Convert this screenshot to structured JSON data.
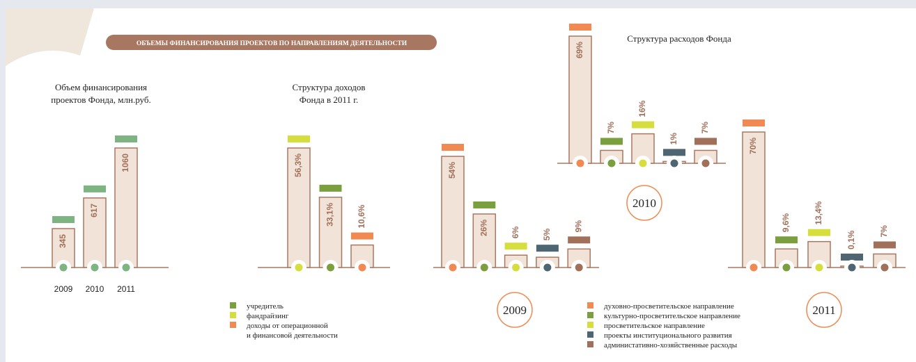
{
  "header": {
    "title": "ОБЪЕМЫ ФИНАНСИРОВАНИЯ ПРОЕКТОВ  ПО НАПРАВЛЕНИЯМ ДЕЯТЕЛЬНОСТИ"
  },
  "chart_data": [
    {
      "type": "bar",
      "title": [
        "Объем финансирования",
        "проектов Фонда, млн.руб."
      ],
      "categories": [
        "2009",
        "2010",
        "2011"
      ],
      "values": [
        345,
        617,
        1060
      ],
      "colors": [
        "#7db482",
        "#7db482",
        "#7db482"
      ]
    },
    {
      "type": "bar",
      "title": [
        "Структура доходов",
        "Фонда в 2011 г."
      ],
      "values": [
        56.3,
        33.1,
        10.6
      ],
      "value_labels": [
        "56,3%",
        "33,1%",
        "10,6%"
      ],
      "colors": [
        "#d6de3e",
        "#7b9e3e",
        "#f08a52"
      ]
    },
    {
      "type": "bar",
      "label": "2009",
      "values": [
        54,
        26,
        6,
        5,
        9
      ],
      "value_labels": [
        "54%",
        "26%",
        "6%",
        "5%",
        "9%"
      ],
      "colors": [
        "#f08a52",
        "#7b9e3e",
        "#d6de3e",
        "#4e6572",
        "#a0705a"
      ]
    },
    {
      "type": "bar",
      "title": [
        "Структура расходов Фонда"
      ],
      "label": "2010",
      "values": [
        69,
        7,
        16,
        1,
        7
      ],
      "value_labels": [
        "69%",
        "7%",
        "16%",
        "1%",
        "7%"
      ],
      "colors": [
        "#f08a52",
        "#7b9e3e",
        "#d6de3e",
        "#4e6572",
        "#a0705a"
      ]
    },
    {
      "type": "bar",
      "label": "2011",
      "values": [
        70,
        9.6,
        13.4,
        0.1,
        7
      ],
      "value_labels": [
        "70%",
        "9,6%",
        "13,4%",
        "0,1%",
        "7%"
      ],
      "colors": [
        "#f08a52",
        "#7b9e3e",
        "#d6de3e",
        "#4e6572",
        "#a0705a"
      ]
    }
  ],
  "legends": [
    {
      "items": [
        {
          "name": [
            "учредитель"
          ],
          "color": "#7b9e3e"
        },
        {
          "name": [
            "фандрайзинг"
          ],
          "color": "#d6de3e"
        },
        {
          "name": [
            "доходы от операционной",
            "и финансовой деятельности"
          ],
          "color": "#f08a52"
        }
      ]
    },
    {
      "items": [
        {
          "name": [
            "духовно-просветительское направление"
          ],
          "color": "#f08a52"
        },
        {
          "name": [
            "культурно-просветительское направление"
          ],
          "color": "#7b9e3e"
        },
        {
          "name": [
            "просветительское направление"
          ],
          "color": "#d6de3e"
        },
        {
          "name": [
            "проекты институционального развития"
          ],
          "color": "#4e6572"
        },
        {
          "name": [
            "администативно-хозяйственные расходы"
          ],
          "color": "#a0705a"
        }
      ]
    }
  ]
}
